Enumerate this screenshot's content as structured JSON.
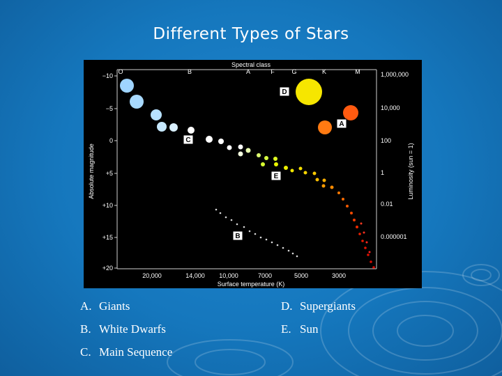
{
  "slide": {
    "title": "Different Types of Stars"
  },
  "diagram": {
    "top_axis_title": "Spectral class",
    "spectral_classes": [
      "O",
      "B",
      "A",
      "F",
      "G",
      "K",
      "M"
    ],
    "left_axis_title": "Absolute magnitude",
    "magnitudes": [
      "−10",
      "−5",
      "0",
      "+5",
      "+10",
      "+15",
      "+20"
    ],
    "right_axis_title": "Luminosity (sun = 1)",
    "luminosities": [
      "1,000,000",
      "10,000",
      "100",
      "1",
      "0.01",
      "0.000001"
    ],
    "bottom_axis_title": "Surface temperature (K)",
    "temperatures": [
      "20,000",
      "14,000",
      "10,000",
      "7000",
      "5000",
      "3000"
    ],
    "labels": [
      "D",
      "A",
      "C",
      "E",
      "B"
    ]
  },
  "answers": {
    "left": [
      {
        "letter": "A.",
        "text": "Giants"
      },
      {
        "letter": "B.",
        "text": "White Dwarfs"
      },
      {
        "letter": "C.",
        "text": "Main Sequence"
      }
    ],
    "right": [
      {
        "letter": "D.",
        "text": "Supergiants"
      },
      {
        "letter": "E.",
        "text": "Sun"
      }
    ]
  },
  "colors": {
    "background": "#1577bd",
    "text": "#ffffff",
    "plot": "#000000"
  }
}
